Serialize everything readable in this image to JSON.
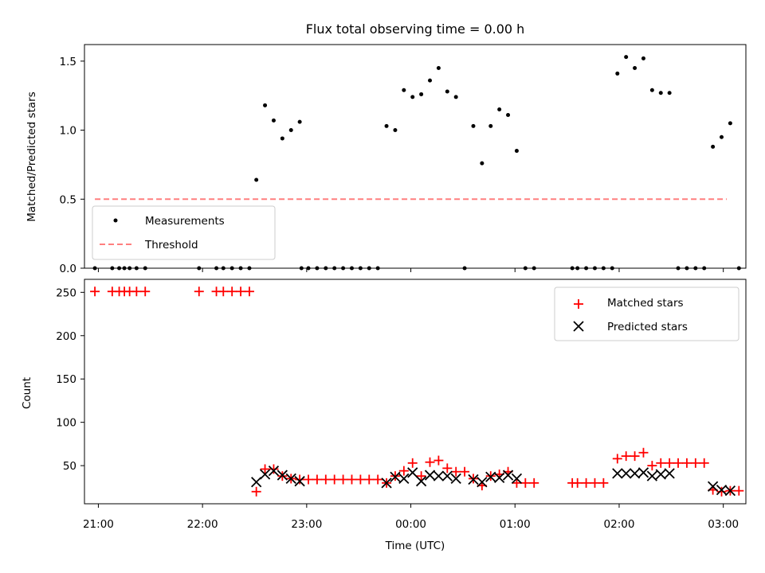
{
  "chart_data": [
    {
      "type": "scatter",
      "title": "Flux total observing time = 0.00 h",
      "xlabel": "",
      "ylabel": "Matched/Predicted stars",
      "xlim": [
        "20:52",
        "03:13"
      ],
      "ylim": [
        0,
        1.62
      ],
      "yticks": [
        "0.0",
        "0.5",
        "1.0",
        "1.5"
      ],
      "ytick_values": [
        0,
        0.5,
        1.0,
        1.5
      ],
      "xticks": [
        "21:00",
        "22:00",
        "23:00",
        "00:00",
        "01:00",
        "02:00",
        "03:00"
      ],
      "xtick_labels_visible": false,
      "legend_position": "lower-left",
      "series": [
        {
          "name": "Measurements",
          "kind": "scatter",
          "color": "#000000",
          "points": [
            [
              "20:58",
              0
            ],
            [
              "21:08",
              0
            ],
            [
              "21:12",
              0
            ],
            [
              "21:15",
              0
            ],
            [
              "21:18",
              0
            ],
            [
              "21:22",
              0
            ],
            [
              "21:27",
              0
            ],
            [
              "21:58",
              0
            ],
            [
              "22:08",
              0
            ],
            [
              "22:12",
              0
            ],
            [
              "22:17",
              0
            ],
            [
              "22:22",
              0
            ],
            [
              "22:27",
              0
            ],
            [
              "22:31",
              0.64
            ],
            [
              "22:36",
              1.18
            ],
            [
              "22:41",
              1.07
            ],
            [
              "22:46",
              0.94
            ],
            [
              "22:51",
              1.0
            ],
            [
              "22:56",
              1.06
            ],
            [
              "22:57",
              0
            ],
            [
              "23:01",
              0
            ],
            [
              "23:06",
              0
            ],
            [
              "23:11",
              0
            ],
            [
              "23:16",
              0
            ],
            [
              "23:21",
              0
            ],
            [
              "23:26",
              0
            ],
            [
              "23:31",
              0
            ],
            [
              "23:36",
              0
            ],
            [
              "23:41",
              0
            ],
            [
              "23:46",
              1.03
            ],
            [
              "23:51",
              1.0
            ],
            [
              "23:56",
              1.29
            ],
            [
              "24:01",
              1.24
            ],
            [
              "24:06",
              1.26
            ],
            [
              "24:11",
              1.36
            ],
            [
              "24:16",
              1.45
            ],
            [
              "24:21",
              1.28
            ],
            [
              "24:26",
              1.24
            ],
            [
              "24:31",
              0
            ],
            [
              "24:36",
              1.03
            ],
            [
              "24:41",
              0.76
            ],
            [
              "24:46",
              1.03
            ],
            [
              "24:51",
              1.15
            ],
            [
              "24:56",
              1.11
            ],
            [
              "25:01",
              0.85
            ],
            [
              "25:06",
              0
            ],
            [
              "25:11",
              0
            ],
            [
              "25:33",
              0
            ],
            [
              "25:36",
              0
            ],
            [
              "25:41",
              0
            ],
            [
              "25:46",
              0
            ],
            [
              "25:51",
              0
            ],
            [
              "25:56",
              0
            ],
            [
              "25:59",
              1.41
            ],
            [
              "26:04",
              1.53
            ],
            [
              "26:09",
              1.45
            ],
            [
              "26:14",
              1.52
            ],
            [
              "26:19",
              1.29
            ],
            [
              "26:24",
              1.27
            ],
            [
              "26:29",
              1.27
            ],
            [
              "26:34",
              0
            ],
            [
              "26:39",
              0
            ],
            [
              "26:44",
              0
            ],
            [
              "26:49",
              0
            ],
            [
              "26:54",
              0.88
            ],
            [
              "26:59",
              0.95
            ],
            [
              "27:04",
              1.05
            ],
            [
              "27:09",
              0
            ]
          ]
        },
        {
          "name": "Threshold",
          "kind": "dashed-line",
          "color": "#ff7f7f",
          "x": [
            "20:58",
            "27:02"
          ],
          "y": [
            0.5,
            0.5
          ]
        }
      ]
    },
    {
      "type": "scatter",
      "title": "",
      "xlabel": "Time (UTC)",
      "ylabel": "Count",
      "xlim": [
        "20:52",
        "03:13"
      ],
      "ylim": [
        6,
        265
      ],
      "yticks": [
        "50",
        "100",
        "150",
        "200",
        "250"
      ],
      "ytick_values": [
        50,
        100,
        150,
        200,
        250
      ],
      "xticks": [
        "21:00",
        "22:00",
        "23:00",
        "00:00",
        "01:00",
        "02:00",
        "03:00"
      ],
      "legend_position": "upper-right",
      "series": [
        {
          "name": "Matched stars",
          "kind": "plus",
          "color": "#ff0000",
          "points": [
            [
              "20:58",
              251
            ],
            [
              "21:08",
              251
            ],
            [
              "21:12",
              251
            ],
            [
              "21:15",
              251
            ],
            [
              "21:18",
              251
            ],
            [
              "21:22",
              251
            ],
            [
              "21:27",
              251
            ],
            [
              "21:58",
              251
            ],
            [
              "22:08",
              251
            ],
            [
              "22:12",
              251
            ],
            [
              "22:17",
              251
            ],
            [
              "22:22",
              251
            ],
            [
              "22:27",
              251
            ],
            [
              "22:31",
              20
            ],
            [
              "22:36",
              46
            ],
            [
              "22:41",
              46
            ],
            [
              "22:46",
              38
            ],
            [
              "22:51",
              35
            ],
            [
              "22:56",
              34
            ],
            [
              "23:01",
              34
            ],
            [
              "23:06",
              34
            ],
            [
              "23:11",
              34
            ],
            [
              "23:16",
              34
            ],
            [
              "23:21",
              34
            ],
            [
              "23:26",
              34
            ],
            [
              "23:31",
              34
            ],
            [
              "23:36",
              34
            ],
            [
              "23:41",
              34
            ],
            [
              "23:46",
              30
            ],
            [
              "23:51",
              38
            ],
            [
              "23:56",
              44
            ],
            [
              "24:01",
              53
            ],
            [
              "24:06",
              38
            ],
            [
              "24:11",
              54
            ],
            [
              "24:16",
              56
            ],
            [
              "24:21",
              47
            ],
            [
              "24:26",
              43
            ],
            [
              "24:31",
              43
            ],
            [
              "24:36",
              35
            ],
            [
              "24:41",
              27
            ],
            [
              "24:46",
              38
            ],
            [
              "24:51",
              40
            ],
            [
              "24:56",
              43
            ],
            [
              "25:01",
              30
            ],
            [
              "25:06",
              30
            ],
            [
              "25:11",
              30
            ],
            [
              "25:33",
              30
            ],
            [
              "25:36",
              30
            ],
            [
              "25:41",
              30
            ],
            [
              "25:46",
              30
            ],
            [
              "25:51",
              30
            ],
            [
              "25:59",
              58
            ],
            [
              "26:04",
              61
            ],
            [
              "26:09",
              61
            ],
            [
              "26:14",
              65
            ],
            [
              "26:19",
              50
            ],
            [
              "26:24",
              53
            ],
            [
              "26:29",
              53
            ],
            [
              "26:34",
              53
            ],
            [
              "26:39",
              53
            ],
            [
              "26:44",
              53
            ],
            [
              "26:49",
              53
            ],
            [
              "26:54",
              22
            ],
            [
              "26:59",
              20
            ],
            [
              "27:04",
              21
            ],
            [
              "27:09",
              21
            ]
          ]
        },
        {
          "name": "Predicted stars",
          "kind": "x",
          "color": "#000000",
          "points": [
            [
              "22:31",
              31
            ],
            [
              "22:36",
              40
            ],
            [
              "22:41",
              44
            ],
            [
              "22:46",
              39
            ],
            [
              "22:51",
              35
            ],
            [
              "22:56",
              32
            ],
            [
              "23:46",
              30
            ],
            [
              "23:51",
              37
            ],
            [
              "23:56",
              35
            ],
            [
              "24:01",
              42
            ],
            [
              "24:06",
              32
            ],
            [
              "24:11",
              39
            ],
            [
              "24:16",
              38
            ],
            [
              "24:21",
              38
            ],
            [
              "24:26",
              35
            ],
            [
              "24:36",
              34
            ],
            [
              "24:41",
              31
            ],
            [
              "24:46",
              37
            ],
            [
              "24:51",
              36
            ],
            [
              "24:56",
              39
            ],
            [
              "25:01",
              35
            ],
            [
              "25:59",
              41
            ],
            [
              "26:04",
              41
            ],
            [
              "26:09",
              41
            ],
            [
              "26:14",
              42
            ],
            [
              "26:19",
              38
            ],
            [
              "26:24",
              40
            ],
            [
              "26:29",
              41
            ],
            [
              "26:54",
              26
            ],
            [
              "26:59",
              22
            ],
            [
              "27:04",
              21
            ]
          ]
        }
      ]
    }
  ]
}
